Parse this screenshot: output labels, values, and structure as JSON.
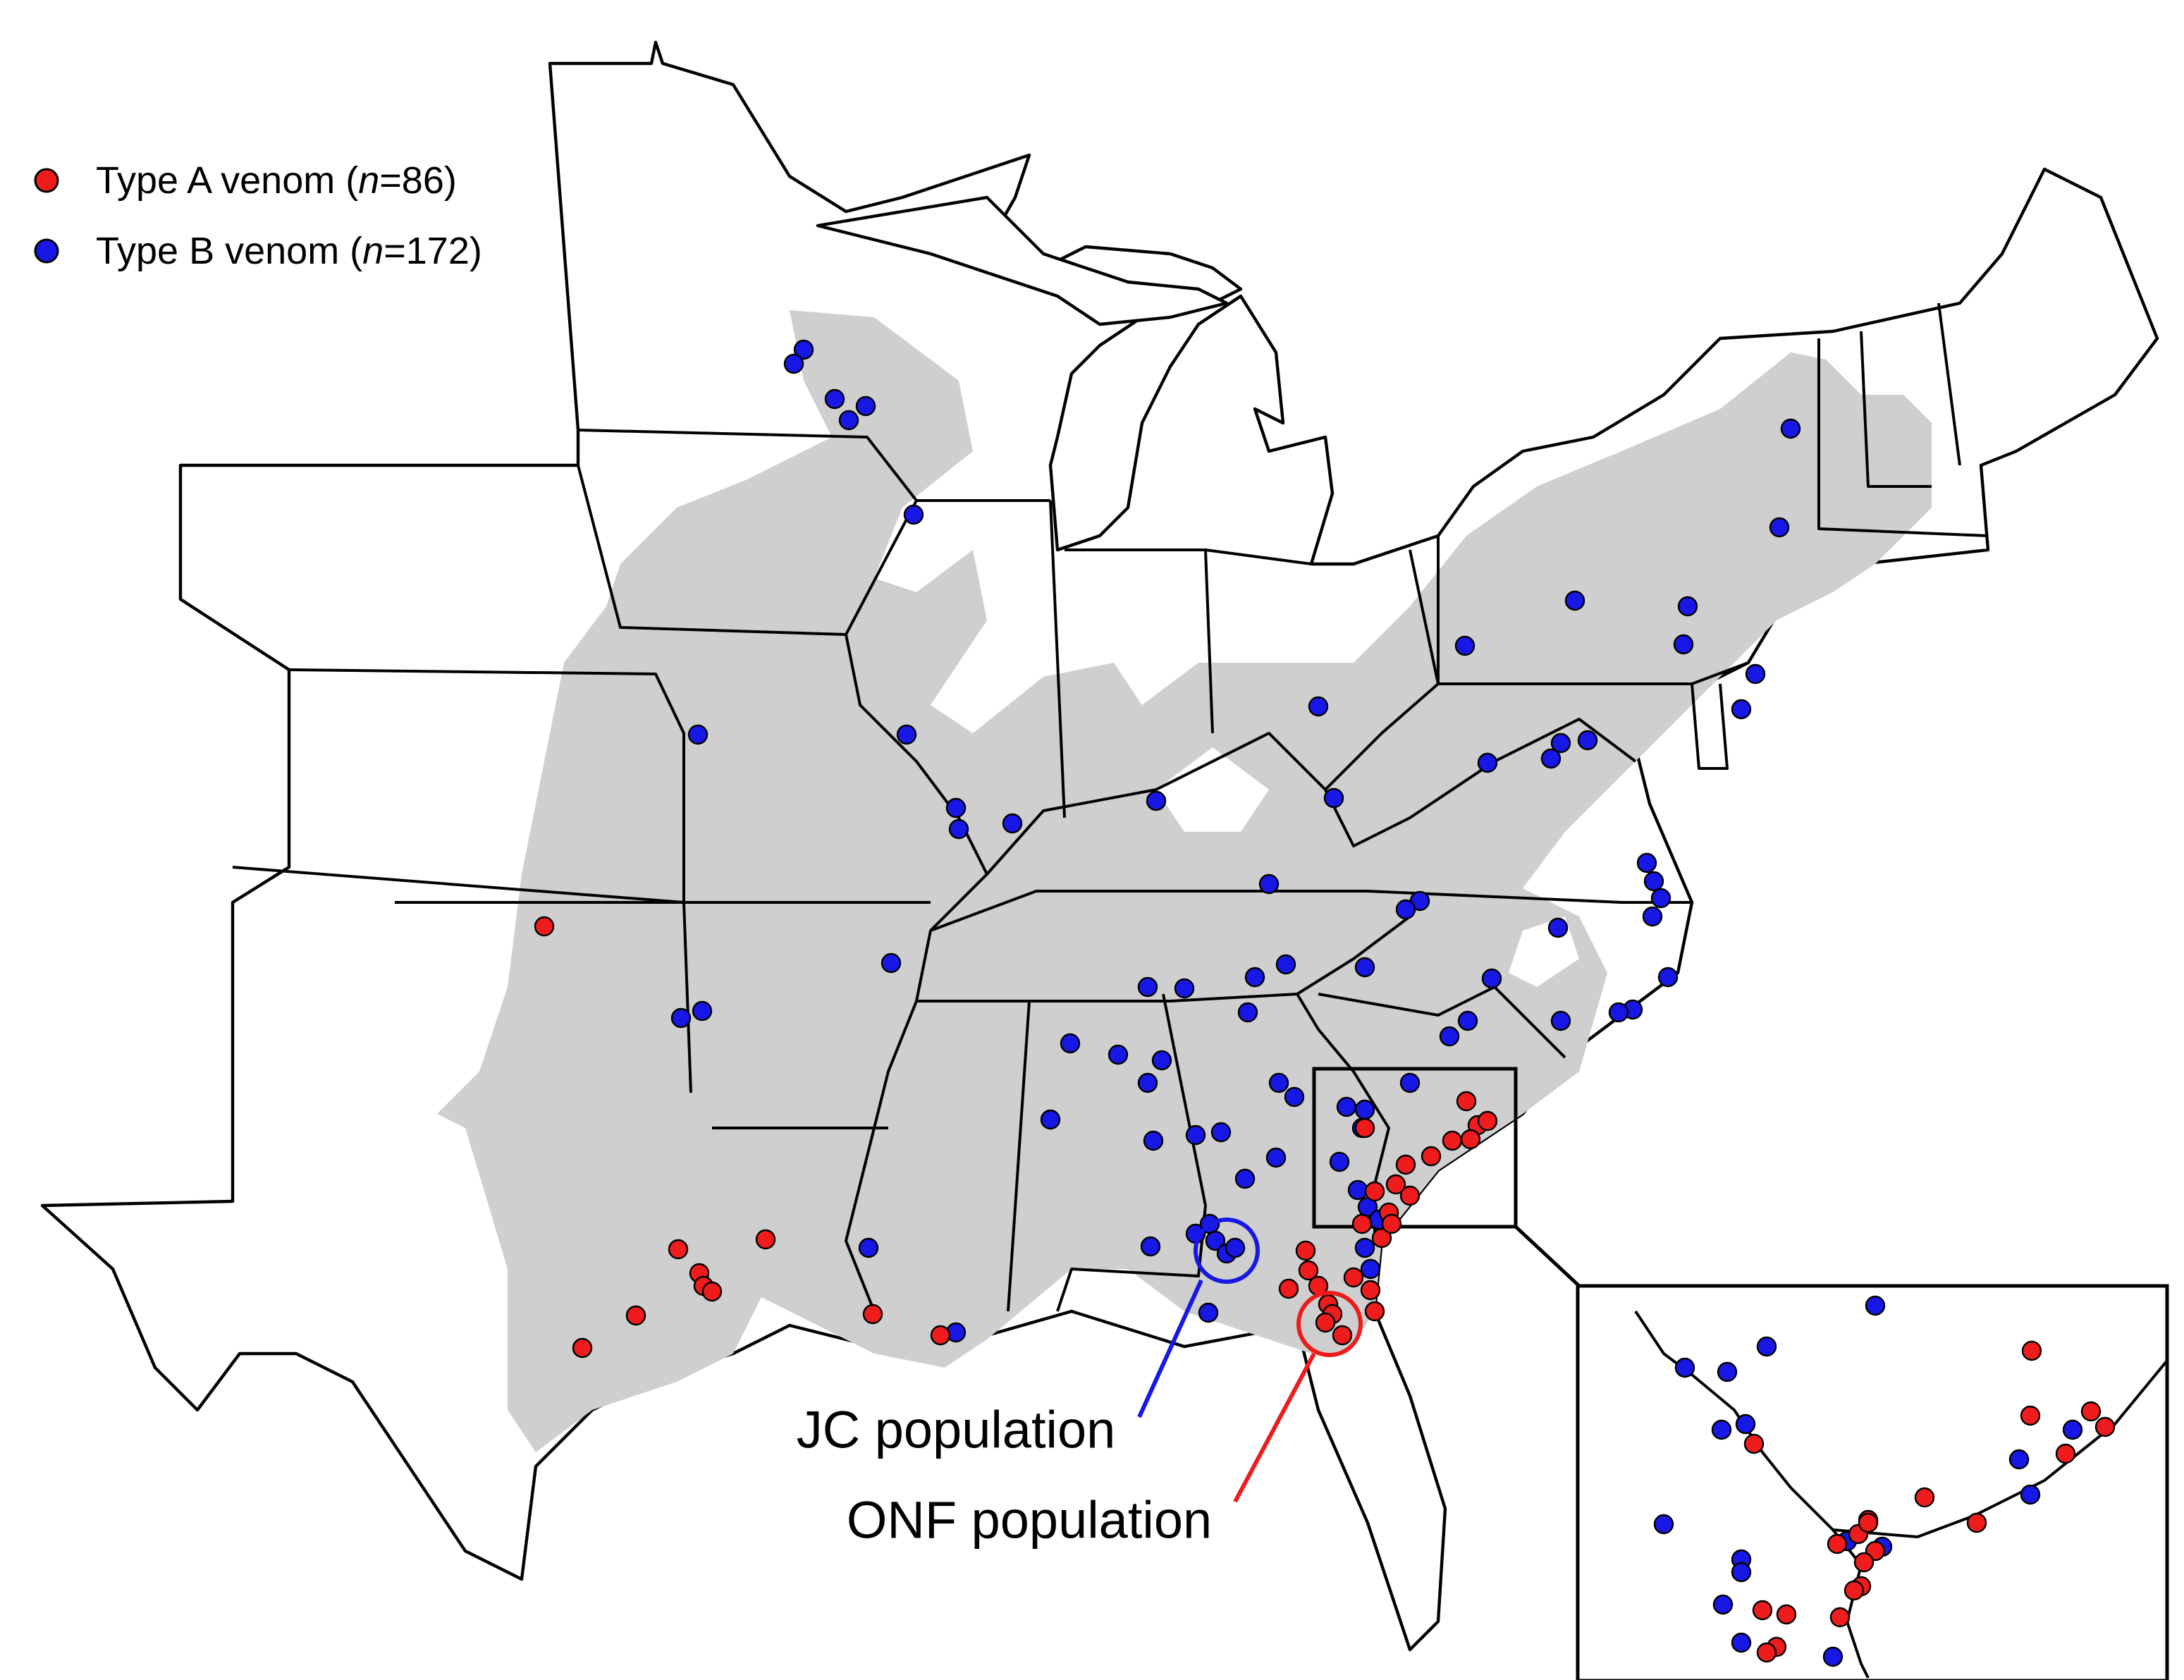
{
  "legend": {
    "items": [
      {
        "prefix": "Type A venom (",
        "n_symbol": "n",
        "count": "=86)",
        "color": "#ee1c1c"
      },
      {
        "prefix": "Type B venom (",
        "n_symbol": "n",
        "count": "=172)",
        "color": "#1717e6"
      }
    ]
  },
  "annotations": {
    "jc_label": "JC population",
    "onf_label": "ONF population"
  }
}
